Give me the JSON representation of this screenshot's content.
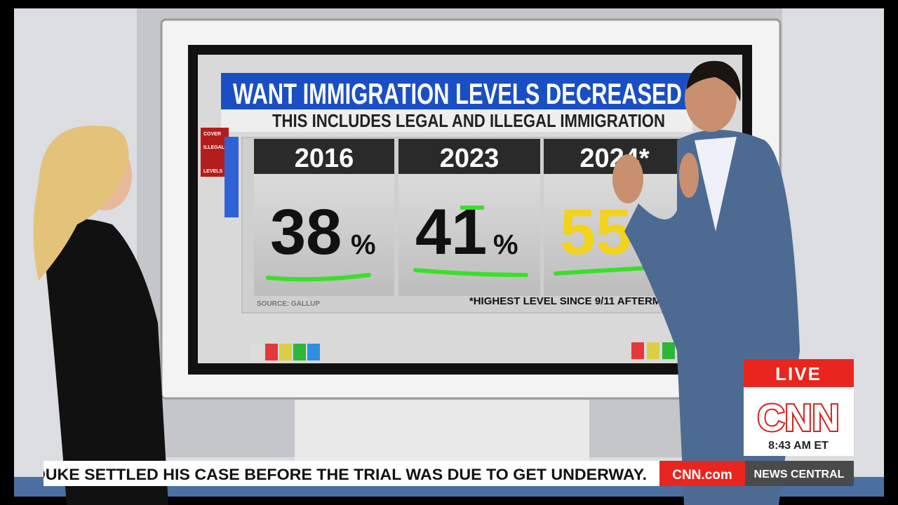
{
  "screen": {
    "title": "WANT IMMIGRATION LEVELS DECREASED",
    "subtitle": "THIS INCLUDES LEGAL AND ILLEGAL IMMIGRATION",
    "sidebar": [
      "COVER",
      "ILLEGAL",
      "LEVELS"
    ],
    "panels": [
      {
        "year": "2016",
        "value": "38",
        "unit": "%"
      },
      {
        "year": "2023",
        "value": "41",
        "unit": "%"
      },
      {
        "year": "2024*",
        "value": "55"
      }
    ],
    "source": "SOURCE: GALLUP",
    "footnote": "*HIGHEST LEVEL SINCE 9/11 AFTERMATH"
  },
  "bug": {
    "live": "LIVE",
    "logo": "CNN",
    "time": "8:43 AM ET"
  },
  "ticker": {
    "text": "DUKE SETTLED HIS CASE BEFORE THE TRIAL WAS DUE TO GET UNDERWAY.",
    "site": "CNN.com",
    "show": "NEWS CENTRAL"
  }
}
